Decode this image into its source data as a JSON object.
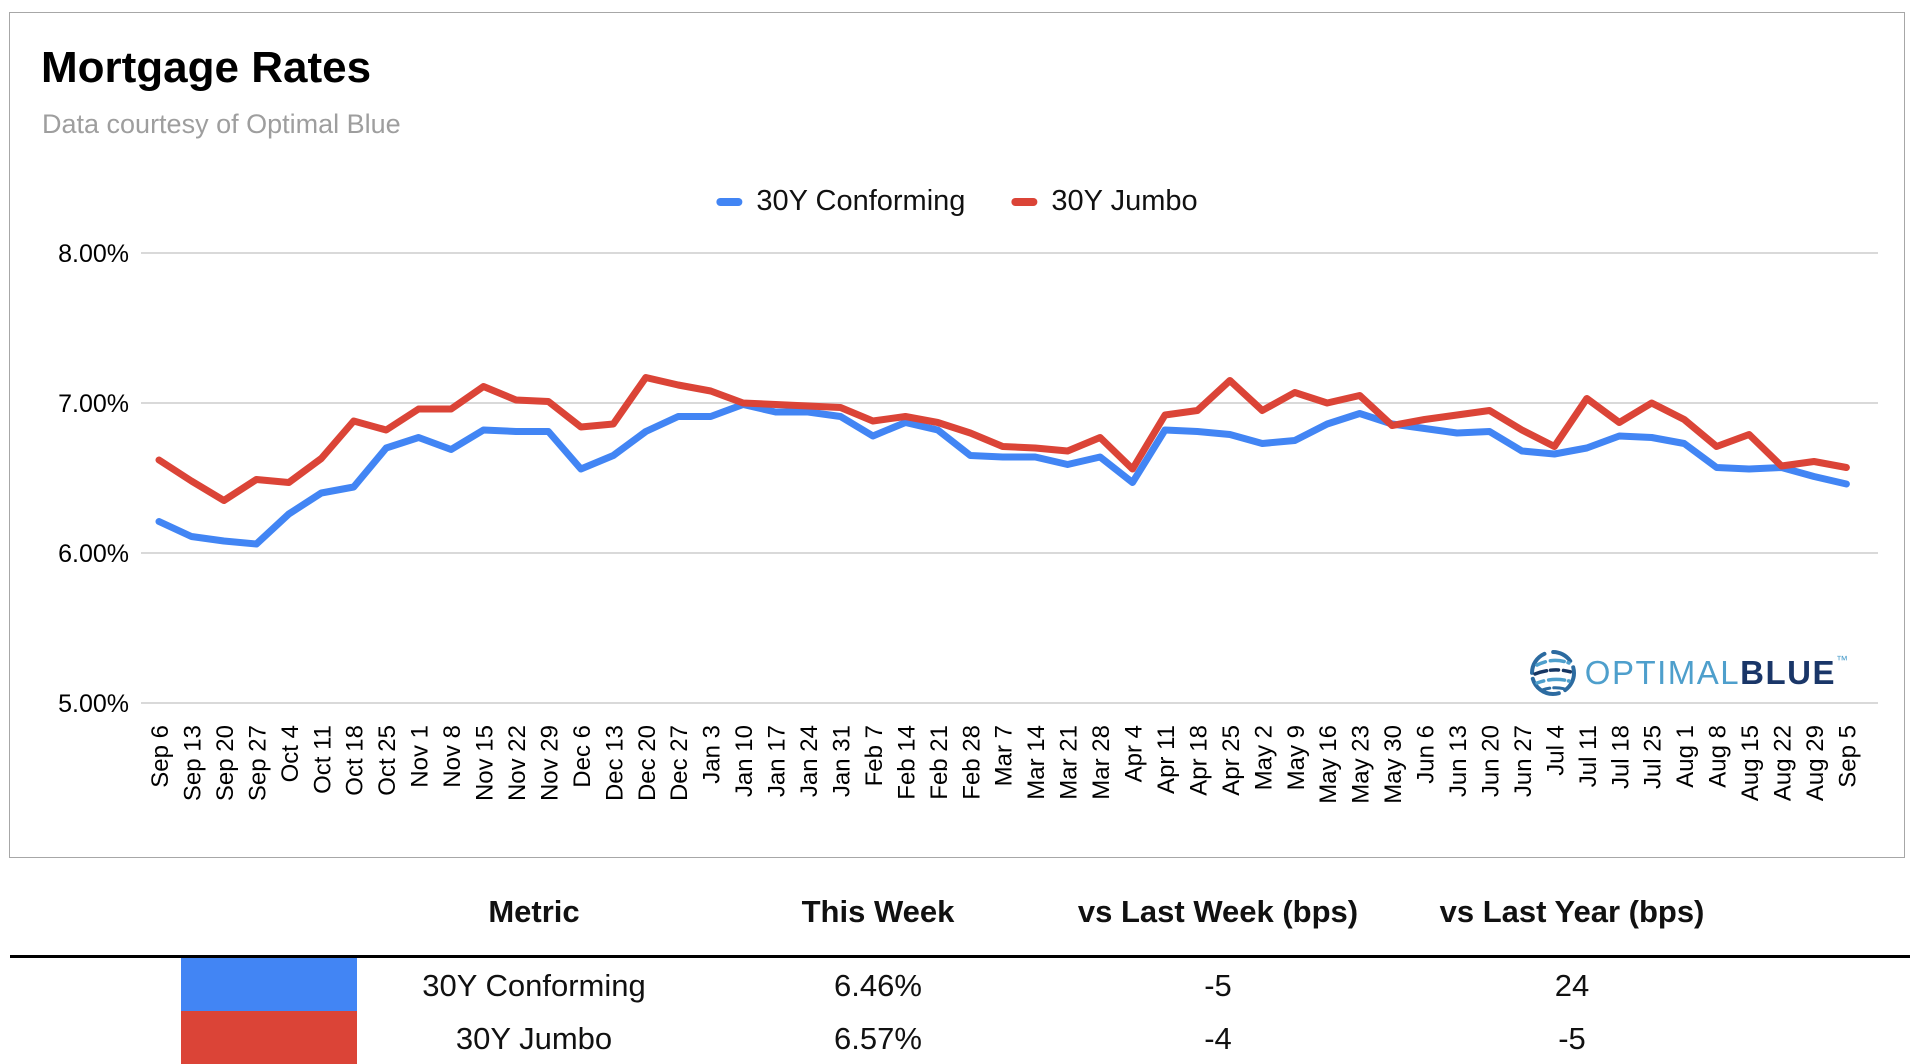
{
  "header": {
    "title": "Mortgage Rates",
    "subtitle": "Data courtesy of Optimal Blue"
  },
  "logo": {
    "text_light": "OPTIMAL",
    "text_dark": "BLUE",
    "tm": "™"
  },
  "chart_data": {
    "type": "line",
    "title": "Mortgage Rates",
    "x": [
      "Sep 6",
      "Sep 13",
      "Sep 20",
      "Sep 27",
      "Oct 4",
      "Oct 11",
      "Oct 18",
      "Oct 25",
      "Nov 1",
      "Nov 8",
      "Nov 15",
      "Nov 22",
      "Nov 29",
      "Dec 6",
      "Dec 13",
      "Dec 20",
      "Dec 27",
      "Jan 3",
      "Jan 10",
      "Jan 17",
      "Jan 24",
      "Jan 31",
      "Feb 7",
      "Feb 14",
      "Feb 21",
      "Feb 28",
      "Mar 7",
      "Mar 14",
      "Mar 21",
      "Mar 28",
      "Apr 4",
      "Apr 11",
      "Apr 18",
      "Apr 25",
      "May 2",
      "May 9",
      "May 16",
      "May 23",
      "May 30",
      "Jun 6",
      "Jun 13",
      "Jun 20",
      "Jun 27",
      "Jul 4",
      "Jul 11",
      "Jul 18",
      "Jul 25",
      "Aug 1",
      "Aug 8",
      "Aug 15",
      "Aug 22",
      "Aug 29",
      "Sep 5"
    ],
    "series": [
      {
        "name": "30Y Conforming",
        "color": "#4285F4",
        "values": [
          6.21,
          6.11,
          6.08,
          6.06,
          6.26,
          6.4,
          6.44,
          6.7,
          6.77,
          6.69,
          6.82,
          6.81,
          6.81,
          6.56,
          6.65,
          6.81,
          6.91,
          6.91,
          6.99,
          6.94,
          6.94,
          6.91,
          6.78,
          6.87,
          6.82,
          6.65,
          6.64,
          6.64,
          6.59,
          6.64,
          6.47,
          6.82,
          6.81,
          6.79,
          6.73,
          6.75,
          6.86,
          6.93,
          6.86,
          6.83,
          6.8,
          6.81,
          6.68,
          6.66,
          6.7,
          6.78,
          6.77,
          6.73,
          6.57,
          6.56,
          6.57,
          6.51,
          6.46
        ]
      },
      {
        "name": "30Y Jumbo",
        "color": "#DB4437",
        "values": [
          6.62,
          6.48,
          6.35,
          6.49,
          6.47,
          6.63,
          6.88,
          6.82,
          6.96,
          6.96,
          7.11,
          7.02,
          7.01,
          6.84,
          6.86,
          7.17,
          7.12,
          7.08,
          7.0,
          6.99,
          6.98,
          6.97,
          6.88,
          6.91,
          6.87,
          6.8,
          6.71,
          6.7,
          6.68,
          6.77,
          6.56,
          6.92,
          6.95,
          7.15,
          6.95,
          7.07,
          7.0,
          7.05,
          6.85,
          6.89,
          6.92,
          6.95,
          6.82,
          6.71,
          7.03,
          6.87,
          7.0,
          6.89,
          6.71,
          6.79,
          6.58,
          6.61,
          6.57
        ]
      }
    ],
    "yticks": [
      {
        "label": "8.00%",
        "value": 8
      },
      {
        "label": "7.00%",
        "value": 7
      },
      {
        "label": "6.00%",
        "value": 6
      },
      {
        "label": "5.00%",
        "value": 5
      }
    ],
    "ylim": [
      5,
      8
    ],
    "grid": true,
    "legend_position": "top"
  },
  "table": {
    "headers": [
      "Metric",
      "This Week",
      "vs Last Week (bps)",
      "vs Last Year (bps)"
    ],
    "rows": [
      {
        "swatch": "#4285F4",
        "metric": "30Y Conforming",
        "this_week": "6.46%",
        "vs_last_week": "-5",
        "vs_last_year": "24"
      },
      {
        "swatch": "#DB4437",
        "metric": "30Y Jumbo",
        "this_week": "6.57%",
        "vs_last_week": "-4",
        "vs_last_year": "-5"
      }
    ]
  }
}
